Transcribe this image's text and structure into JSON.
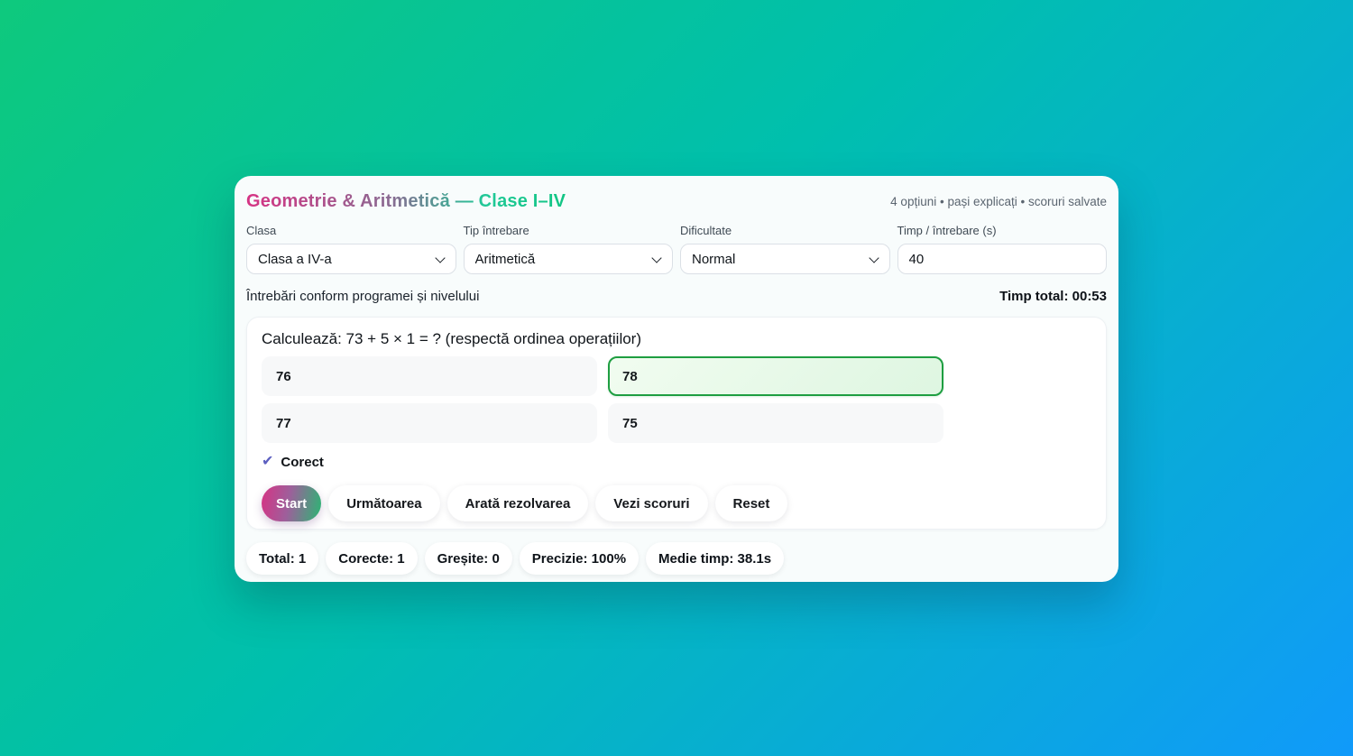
{
  "header": {
    "title": "Geometrie & Aritmetică — Clase I–IV",
    "meta": "4 opțiuni • pași explicați • scoruri salvate"
  },
  "settings": {
    "fields": [
      {
        "label": "Clasa",
        "type": "select",
        "value": "Clasa a IV-a"
      },
      {
        "label": "Tip întrebare",
        "type": "select",
        "value": "Aritmetică"
      },
      {
        "label": "Dificultate",
        "type": "select",
        "value": "Normal"
      },
      {
        "label": "Timp / întrebare (s)",
        "type": "input",
        "value": "40"
      }
    ]
  },
  "status": {
    "info": "Întrebări conform programei și nivelului",
    "total_time": "Timp total: 00:53"
  },
  "quiz": {
    "question": "Calculează: 73 + 5 × 1 = ? (respectă ordinea operațiilor)",
    "options": [
      {
        "text": "76",
        "state": "default"
      },
      {
        "text": "78",
        "state": "selected-correct"
      },
      {
        "text": "77",
        "state": "default"
      },
      {
        "text": "75",
        "state": "default"
      }
    ],
    "feedback": {
      "icon": "check-icon",
      "icon_glyph": "✔",
      "text": "Corect"
    }
  },
  "actions": [
    {
      "id": "start",
      "label": "Start"
    },
    {
      "id": "next",
      "label": "Următoarea"
    },
    {
      "id": "show-solution",
      "label": "Arată rezolvarea"
    },
    {
      "id": "see-scores",
      "label": "Vezi scoruri"
    },
    {
      "id": "reset",
      "label": "Reset"
    }
  ],
  "stats": [
    "Total: 1",
    "Corecte: 1",
    "Greșite: 0",
    "Precizie: 100%",
    "Medie timp: 38.1s"
  ],
  "colors": {
    "background_gradient": [
      "#0ec97d",
      "#109afa"
    ],
    "title_gradient": [
      "#d63384",
      "#20c997"
    ],
    "correct_border": "#1e9e41",
    "correct_fill": "#def6e1",
    "check_icon": "#5c5fc0",
    "start_gradient": [
      "#d63384",
      "#2bb673"
    ]
  }
}
